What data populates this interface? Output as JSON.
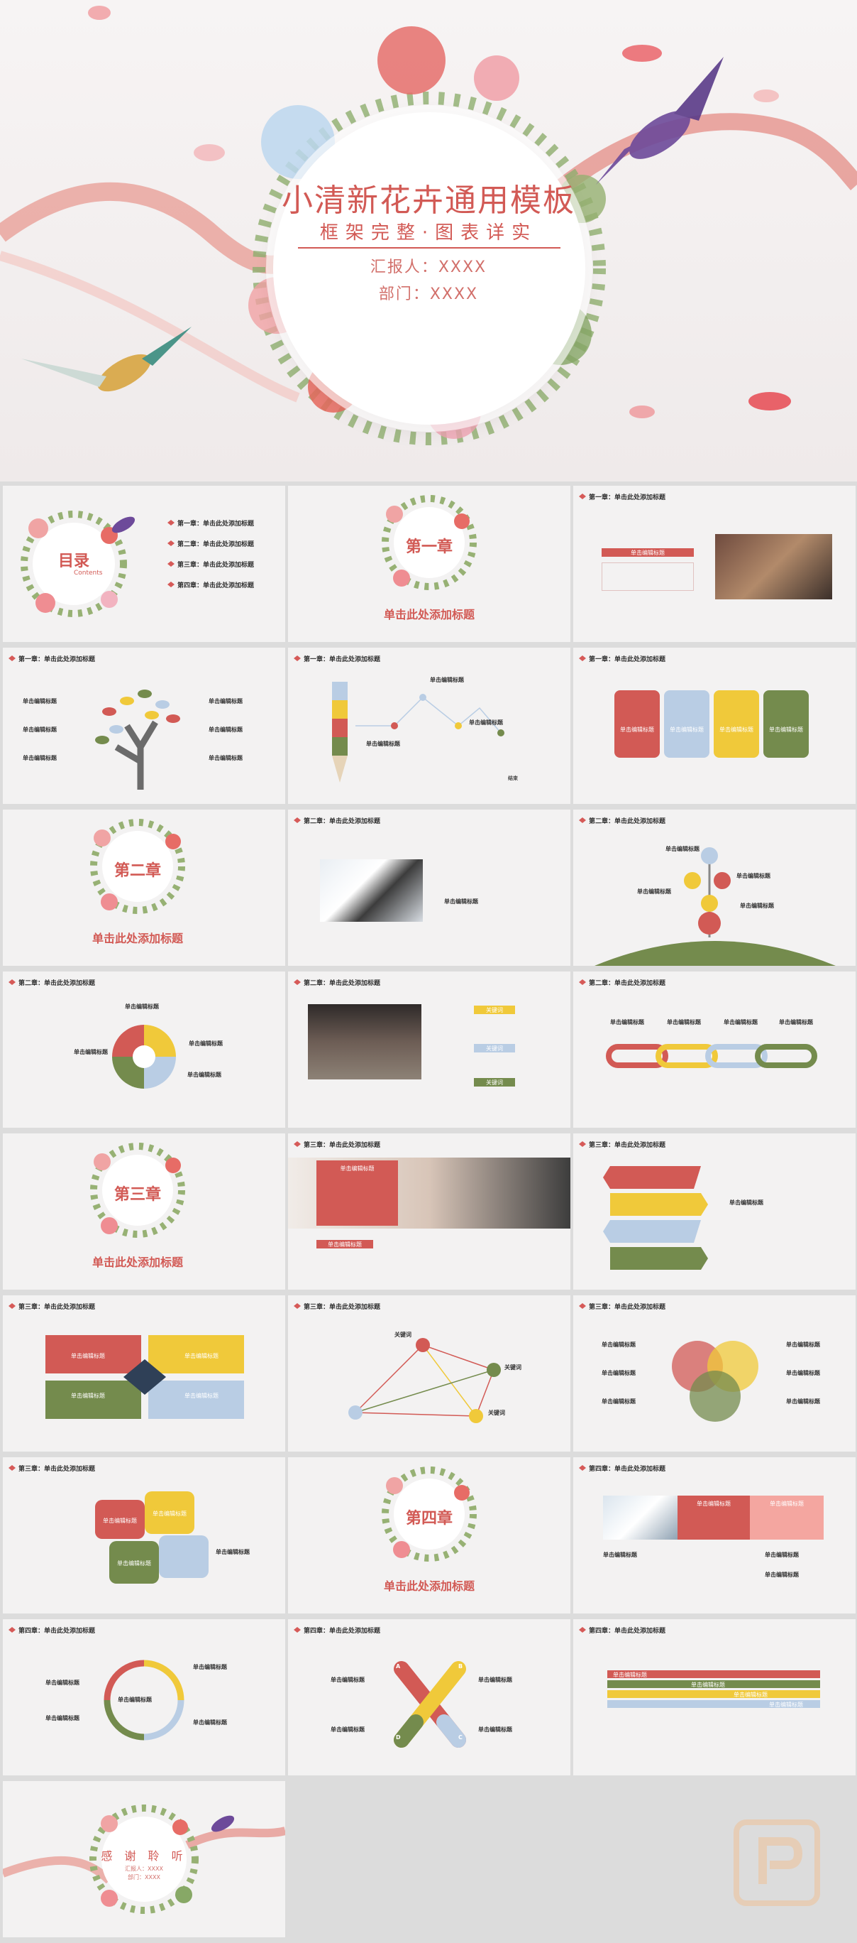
{
  "cover": {
    "title": "小清新花卉通用模板",
    "subtitle": "框架完整·图表详实",
    "reporter": "汇报人：XXXX",
    "department": "部门：XXXX"
  },
  "toc": {
    "title": "目录",
    "en": "Contents",
    "items": [
      "第一章：单击此处添加标题",
      "第二章：单击此处添加标题",
      "第三章：单击此处添加标题",
      "第四章：单击此处添加标题"
    ]
  },
  "chapters": {
    "one": "第一章",
    "two": "第二章",
    "three": "第三章",
    "four": "第四章",
    "subtitle": "单击此处添加标题"
  },
  "headers": {
    "ch1": "第一章：单击此处添加标题",
    "ch2": "第二章：单击此处添加标题",
    "ch3": "第三章：单击此处添加标题",
    "ch4": "第四章：单击此处添加标题"
  },
  "labels": {
    "edit_title": "单击编辑标题",
    "edit_content": "单击编辑标题",
    "keyword": "关键词",
    "add_title": "单击添加标题",
    "letters": [
      "A",
      "B",
      "C",
      "D"
    ],
    "end": "结束"
  },
  "ending": {
    "title": "感 谢 聆 听",
    "reporter": "汇报人：XXXX",
    "department": "部门：XXXX"
  },
  "colors": {
    "red": "#d25a55",
    "yellow": "#f0c93a",
    "blue": "#b9cde4",
    "green": "#748b4d",
    "pink": "#f4a6a0"
  }
}
